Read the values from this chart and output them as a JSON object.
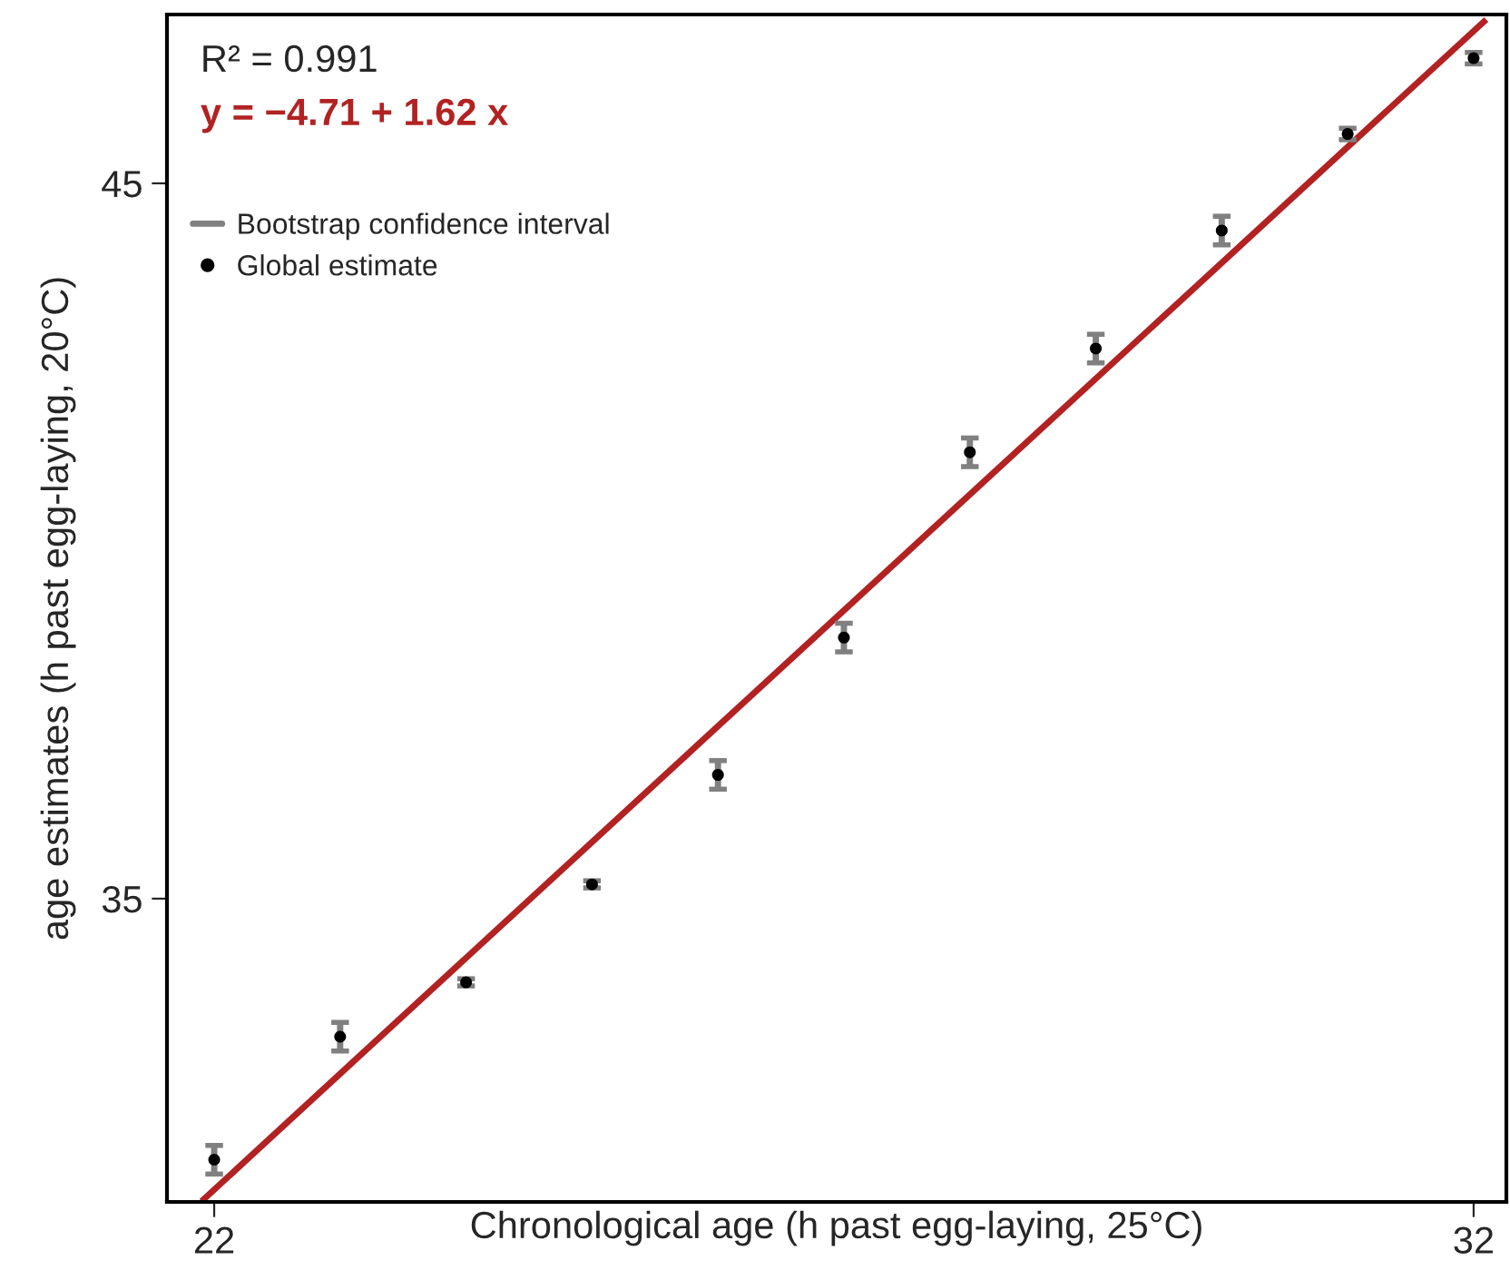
{
  "chart_data": {
    "type": "scatter",
    "xlabel": "Chronological age (h past egg-laying, 25°C)",
    "ylabel": "age estimates (h past egg-laying, 20°C)",
    "x": [
      22,
      23,
      24,
      25,
      26,
      27,
      28,
      29,
      30,
      31,
      32
    ],
    "series": [
      {
        "name": "Global estimate",
        "color": "#000000",
        "marker": "circle",
        "values": [
          31.35,
          33.07,
          33.83,
          35.2,
          36.73,
          38.65,
          41.24,
          42.69,
          44.34,
          45.69,
          46.75
        ],
        "errors": [
          0.2,
          0.2,
          0.05,
          0.05,
          0.2,
          0.2,
          0.2,
          0.2,
          0.2,
          0.08,
          0.08
        ]
      },
      {
        "name": "y = −4.71 + 1.62 x",
        "type": "line",
        "color": "#b22222",
        "x": [
          21.9,
          32.1
        ],
        "values": [
          30.77,
          47.29
        ]
      }
    ],
    "annotations": [
      "R² = 0.991",
      "Bootstrap confidence interval"
    ],
    "xlim": [
      21.625,
      32.26
    ],
    "ylim": [
      30.76,
      47.36
    ],
    "xticks": [
      22,
      32
    ],
    "yticks": [
      35,
      45
    ],
    "grid": false,
    "legend": "top left"
  }
}
